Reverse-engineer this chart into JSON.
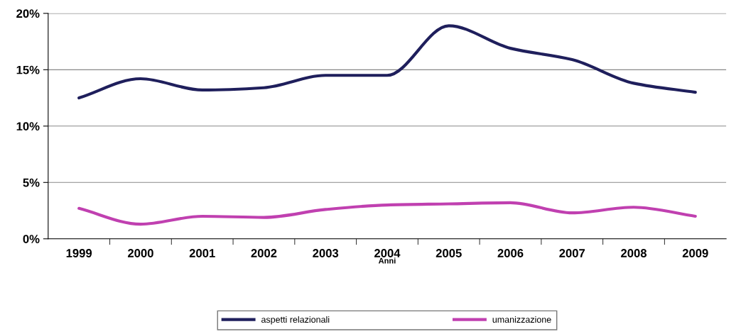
{
  "chart_data": {
    "type": "line",
    "xlabel": "Anni",
    "categories": [
      "1999",
      "2000",
      "2001",
      "2002",
      "2003",
      "2004",
      "2005",
      "2006",
      "2007",
      "2008",
      "2009"
    ],
    "series": [
      {
        "name": "aspetti relazionali",
        "color": "#1f1f5c",
        "values": [
          12.5,
          14.2,
          13.2,
          13.4,
          14.5,
          14.5,
          18.9,
          16.9,
          15.9,
          13.8,
          13.0
        ]
      },
      {
        "name": "umanizzazione",
        "color": "#c040b0",
        "values": [
          2.7,
          1.3,
          2.0,
          1.9,
          2.6,
          3.0,
          3.1,
          3.2,
          2.3,
          2.8,
          2.0
        ]
      }
    ],
    "ylim": [
      0,
      20
    ],
    "yticks": [
      {
        "value": 0,
        "label": "0%"
      },
      {
        "value": 5,
        "label": "5%"
      },
      {
        "value": 10,
        "label": "10%"
      },
      {
        "value": 15,
        "label": "15%"
      },
      {
        "value": 20,
        "label": "20%"
      }
    ],
    "grid": "y",
    "legend": "bottom",
    "marker": "none",
    "line_style": "solid"
  }
}
